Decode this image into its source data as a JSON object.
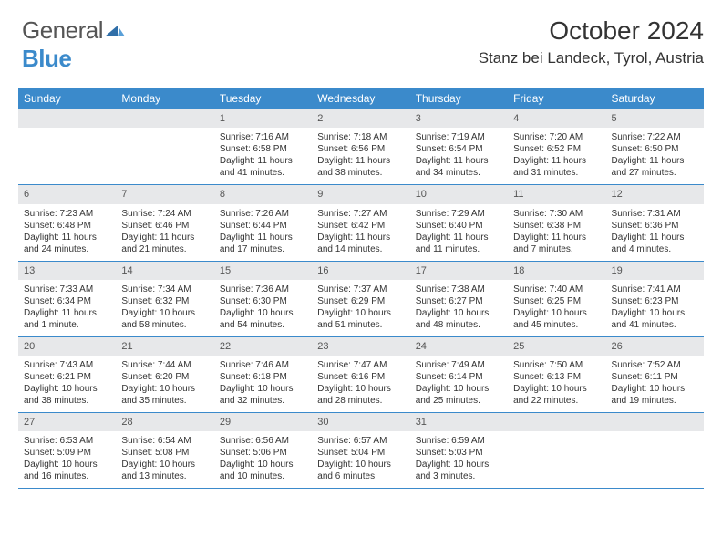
{
  "logo": {
    "name1": "General",
    "name2": "Blue"
  },
  "title": "October 2024",
  "location": "Stanz bei Landeck, Tyrol, Austria",
  "colors": {
    "header_bg": "#3b8acb",
    "daynum_bg": "#e7e8ea",
    "border": "#3b8acb",
    "text": "#333333",
    "logo_gray": "#555555",
    "logo_blue": "#3b8acb",
    "bg": "#ffffff"
  },
  "dayNames": [
    "Sunday",
    "Monday",
    "Tuesday",
    "Wednesday",
    "Thursday",
    "Friday",
    "Saturday"
  ],
  "weeks": [
    [
      {
        "day": "",
        "sunrise": "",
        "sunset": "",
        "daylight": ""
      },
      {
        "day": "",
        "sunrise": "",
        "sunset": "",
        "daylight": ""
      },
      {
        "day": "1",
        "sunrise": "Sunrise: 7:16 AM",
        "sunset": "Sunset: 6:58 PM",
        "daylight": "Daylight: 11 hours and 41 minutes."
      },
      {
        "day": "2",
        "sunrise": "Sunrise: 7:18 AM",
        "sunset": "Sunset: 6:56 PM",
        "daylight": "Daylight: 11 hours and 38 minutes."
      },
      {
        "day": "3",
        "sunrise": "Sunrise: 7:19 AM",
        "sunset": "Sunset: 6:54 PM",
        "daylight": "Daylight: 11 hours and 34 minutes."
      },
      {
        "day": "4",
        "sunrise": "Sunrise: 7:20 AM",
        "sunset": "Sunset: 6:52 PM",
        "daylight": "Daylight: 11 hours and 31 minutes."
      },
      {
        "day": "5",
        "sunrise": "Sunrise: 7:22 AM",
        "sunset": "Sunset: 6:50 PM",
        "daylight": "Daylight: 11 hours and 27 minutes."
      }
    ],
    [
      {
        "day": "6",
        "sunrise": "Sunrise: 7:23 AM",
        "sunset": "Sunset: 6:48 PM",
        "daylight": "Daylight: 11 hours and 24 minutes."
      },
      {
        "day": "7",
        "sunrise": "Sunrise: 7:24 AM",
        "sunset": "Sunset: 6:46 PM",
        "daylight": "Daylight: 11 hours and 21 minutes."
      },
      {
        "day": "8",
        "sunrise": "Sunrise: 7:26 AM",
        "sunset": "Sunset: 6:44 PM",
        "daylight": "Daylight: 11 hours and 17 minutes."
      },
      {
        "day": "9",
        "sunrise": "Sunrise: 7:27 AM",
        "sunset": "Sunset: 6:42 PM",
        "daylight": "Daylight: 11 hours and 14 minutes."
      },
      {
        "day": "10",
        "sunrise": "Sunrise: 7:29 AM",
        "sunset": "Sunset: 6:40 PM",
        "daylight": "Daylight: 11 hours and 11 minutes."
      },
      {
        "day": "11",
        "sunrise": "Sunrise: 7:30 AM",
        "sunset": "Sunset: 6:38 PM",
        "daylight": "Daylight: 11 hours and 7 minutes."
      },
      {
        "day": "12",
        "sunrise": "Sunrise: 7:31 AM",
        "sunset": "Sunset: 6:36 PM",
        "daylight": "Daylight: 11 hours and 4 minutes."
      }
    ],
    [
      {
        "day": "13",
        "sunrise": "Sunrise: 7:33 AM",
        "sunset": "Sunset: 6:34 PM",
        "daylight": "Daylight: 11 hours and 1 minute."
      },
      {
        "day": "14",
        "sunrise": "Sunrise: 7:34 AM",
        "sunset": "Sunset: 6:32 PM",
        "daylight": "Daylight: 10 hours and 58 minutes."
      },
      {
        "day": "15",
        "sunrise": "Sunrise: 7:36 AM",
        "sunset": "Sunset: 6:30 PM",
        "daylight": "Daylight: 10 hours and 54 minutes."
      },
      {
        "day": "16",
        "sunrise": "Sunrise: 7:37 AM",
        "sunset": "Sunset: 6:29 PM",
        "daylight": "Daylight: 10 hours and 51 minutes."
      },
      {
        "day": "17",
        "sunrise": "Sunrise: 7:38 AM",
        "sunset": "Sunset: 6:27 PM",
        "daylight": "Daylight: 10 hours and 48 minutes."
      },
      {
        "day": "18",
        "sunrise": "Sunrise: 7:40 AM",
        "sunset": "Sunset: 6:25 PM",
        "daylight": "Daylight: 10 hours and 45 minutes."
      },
      {
        "day": "19",
        "sunrise": "Sunrise: 7:41 AM",
        "sunset": "Sunset: 6:23 PM",
        "daylight": "Daylight: 10 hours and 41 minutes."
      }
    ],
    [
      {
        "day": "20",
        "sunrise": "Sunrise: 7:43 AM",
        "sunset": "Sunset: 6:21 PM",
        "daylight": "Daylight: 10 hours and 38 minutes."
      },
      {
        "day": "21",
        "sunrise": "Sunrise: 7:44 AM",
        "sunset": "Sunset: 6:20 PM",
        "daylight": "Daylight: 10 hours and 35 minutes."
      },
      {
        "day": "22",
        "sunrise": "Sunrise: 7:46 AM",
        "sunset": "Sunset: 6:18 PM",
        "daylight": "Daylight: 10 hours and 32 minutes."
      },
      {
        "day": "23",
        "sunrise": "Sunrise: 7:47 AM",
        "sunset": "Sunset: 6:16 PM",
        "daylight": "Daylight: 10 hours and 28 minutes."
      },
      {
        "day": "24",
        "sunrise": "Sunrise: 7:49 AM",
        "sunset": "Sunset: 6:14 PM",
        "daylight": "Daylight: 10 hours and 25 minutes."
      },
      {
        "day": "25",
        "sunrise": "Sunrise: 7:50 AM",
        "sunset": "Sunset: 6:13 PM",
        "daylight": "Daylight: 10 hours and 22 minutes."
      },
      {
        "day": "26",
        "sunrise": "Sunrise: 7:52 AM",
        "sunset": "Sunset: 6:11 PM",
        "daylight": "Daylight: 10 hours and 19 minutes."
      }
    ],
    [
      {
        "day": "27",
        "sunrise": "Sunrise: 6:53 AM",
        "sunset": "Sunset: 5:09 PM",
        "daylight": "Daylight: 10 hours and 16 minutes."
      },
      {
        "day": "28",
        "sunrise": "Sunrise: 6:54 AM",
        "sunset": "Sunset: 5:08 PM",
        "daylight": "Daylight: 10 hours and 13 minutes."
      },
      {
        "day": "29",
        "sunrise": "Sunrise: 6:56 AM",
        "sunset": "Sunset: 5:06 PM",
        "daylight": "Daylight: 10 hours and 10 minutes."
      },
      {
        "day": "30",
        "sunrise": "Sunrise: 6:57 AM",
        "sunset": "Sunset: 5:04 PM",
        "daylight": "Daylight: 10 hours and 6 minutes."
      },
      {
        "day": "31",
        "sunrise": "Sunrise: 6:59 AM",
        "sunset": "Sunset: 5:03 PM",
        "daylight": "Daylight: 10 hours and 3 minutes."
      },
      {
        "day": "",
        "sunrise": "",
        "sunset": "",
        "daylight": ""
      },
      {
        "day": "",
        "sunrise": "",
        "sunset": "",
        "daylight": ""
      }
    ]
  ]
}
